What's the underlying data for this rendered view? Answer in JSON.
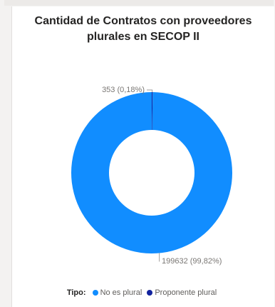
{
  "chart_data": {
    "type": "pie",
    "title_lines": [
      "Cantidad de Contratos con proveedores",
      "plurales en SECOP II"
    ],
    "donut": true,
    "categories": [
      "No es plural",
      "Proponente plural"
    ],
    "values": [
      199632,
      353
    ],
    "data_labels": [
      "199632 (99,82%)",
      "353 (0,18%)"
    ],
    "colors": [
      "#118dff",
      "#12239e"
    ],
    "legend": {
      "title": "Tipo:",
      "placement": "bottom"
    }
  }
}
